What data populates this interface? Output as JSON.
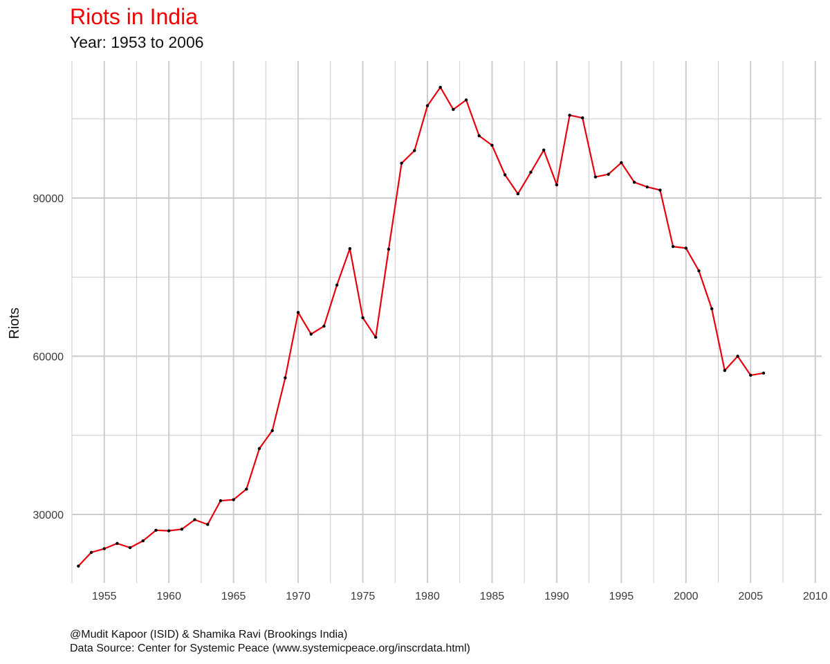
{
  "chart_data": {
    "type": "line",
    "title": "Riots in India",
    "subtitle": "Year: 1953 to 2006",
    "xlabel": "",
    "ylabel": "Riots",
    "x": [
      1953,
      1954,
      1955,
      1956,
      1957,
      1958,
      1959,
      1960,
      1961,
      1962,
      1963,
      1964,
      1965,
      1966,
      1967,
      1968,
      1969,
      1970,
      1971,
      1972,
      1973,
      1974,
      1975,
      1976,
      1977,
      1978,
      1979,
      1980,
      1981,
      1982,
      1983,
      1984,
      1985,
      1986,
      1987,
      1988,
      1989,
      1990,
      1991,
      1992,
      1993,
      1994,
      1995,
      1996,
      1997,
      1998,
      1999,
      2000,
      2001,
      2002,
      2003,
      2004,
      2005,
      2006
    ],
    "series": [
      {
        "values": [
          20200,
          22800,
          23500,
          24500,
          23700,
          25000,
          27000,
          26900,
          27200,
          29000,
          28100,
          32600,
          32800,
          34800,
          42500,
          45900,
          55900,
          68300,
          64200,
          65700,
          73500,
          80400,
          67300,
          63600,
          80300,
          96600,
          99000,
          107500,
          111000,
          106800,
          108600,
          101800,
          100000,
          94400,
          90800,
          94900,
          99100,
          92500,
          105700,
          105200,
          94000,
          94500,
          96700,
          93000,
          92100,
          91500,
          80800,
          80500,
          76200,
          69000,
          57300,
          60000,
          56400,
          56800
        ]
      }
    ],
    "xticks": [
      "1955",
      "1960",
      "1965",
      "1970",
      "1975",
      "1980",
      "1985",
      "1990",
      "1995",
      "2000",
      "2005",
      "2010"
    ],
    "yticks": [
      "30000",
      "60000",
      "90000"
    ],
    "xlim": [
      1952.5,
      2010.5
    ],
    "ylim": [
      17000,
      116000
    ],
    "grid": true,
    "line_color": "#e8000d",
    "point_color": "#000000",
    "title_color": "#f00000",
    "grid_color": "#cccccc"
  },
  "caption": {
    "line1": "@Mudit Kapoor (ISID) & Shamika Ravi (Brookings India)",
    "line2": "Data Source: Center for Systemic Peace (www.systemicpeace.org/inscrdata.html)"
  }
}
